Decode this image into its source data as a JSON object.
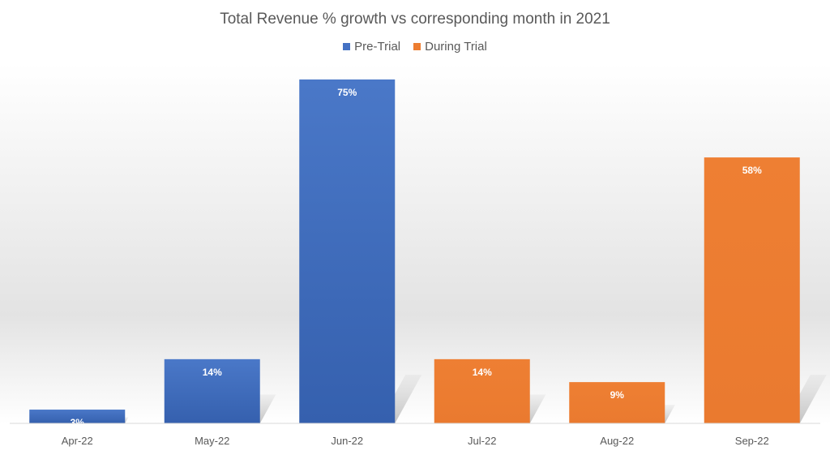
{
  "chart_data": {
    "type": "bar",
    "title": "Total Revenue % growth vs corresponding month in 2021",
    "categories": [
      "Apr-22",
      "May-22",
      "Jun-22",
      "Jul-22",
      "Aug-22",
      "Sep-22"
    ],
    "values": [
      3,
      14,
      75,
      14,
      9,
      58
    ],
    "data_labels": [
      "3%",
      "14%",
      "75%",
      "14%",
      "9%",
      "58%"
    ],
    "bar_series": [
      "Pre-Trial",
      "Pre-Trial",
      "Pre-Trial",
      "During Trial",
      "During Trial",
      "During Trial"
    ],
    "series": [
      {
        "name": "Pre-Trial",
        "color": "#4472C4"
      },
      {
        "name": "During Trial",
        "color": "#ED7D31"
      }
    ],
    "ylim": [
      0,
      80
    ],
    "grid": false,
    "legend_position": "top"
  }
}
